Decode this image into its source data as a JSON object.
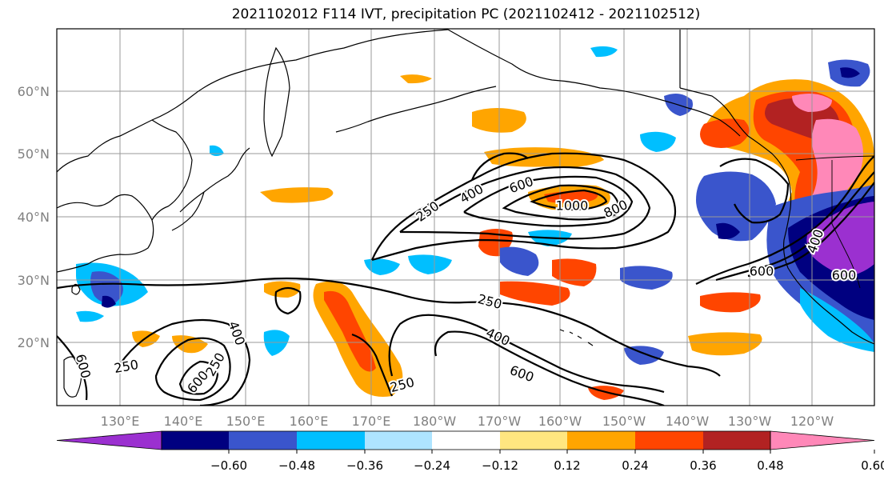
{
  "title": "2021102012 F114 IVT, precipitation PC (2021102412 - 2021102512)",
  "lat_labels": [
    "60°N",
    "50°N",
    "40°N",
    "30°N",
    "20°N"
  ],
  "lon_labels": [
    "130°E",
    "140°E",
    "150°E",
    "160°E",
    "170°E",
    "180°W",
    "170°W",
    "160°W",
    "150°W",
    "140°W",
    "130°W",
    "120°W"
  ],
  "colorbar": {
    "tick_labels": [
      "−0.60",
      "−0.48",
      "−0.36",
      "−0.24",
      "−0.12",
      "0.12",
      "0.24",
      "0.36",
      "0.48",
      "0.60"
    ],
    "colors": [
      "#9b30d0",
      "#000080",
      "#3a55cc",
      "#00bfff",
      "#aee4ff",
      "#ffffff",
      "#ffe680",
      "#ffa500",
      "#ff4500",
      "#b22222",
      "#ff88b8"
    ]
  },
  "ivt_contour_labels": [
    "250",
    "400",
    "600",
    "1000",
    "800",
    "250",
    "400",
    "600",
    "250",
    "250",
    "600",
    "400",
    "600",
    "250",
    "600",
    "400",
    "600"
  ],
  "colors": {
    "gridline": "#999999",
    "coastline": "#000000",
    "contour": "#000000",
    "axis_label": "#808080"
  }
}
